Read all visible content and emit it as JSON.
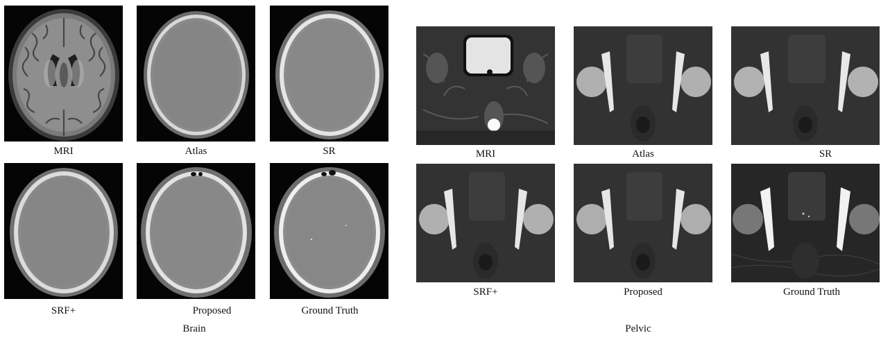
{
  "figure": {
    "brain": {
      "group_label": "Brain",
      "panels": [
        {
          "label": "MRI",
          "kind": "mri"
        },
        {
          "label": "Atlas",
          "kind": "atlas"
        },
        {
          "label": "SR",
          "kind": "sr"
        },
        {
          "label": "SRF+",
          "kind": "srf"
        },
        {
          "label": "Proposed",
          "kind": "proposed"
        },
        {
          "label": "Ground Truth",
          "kind": "gt"
        }
      ]
    },
    "pelvic": {
      "group_label": "Pelvic",
      "panels": [
        {
          "label": "MRI",
          "kind": "mri"
        },
        {
          "label": "Atlas",
          "kind": "atlas"
        },
        {
          "label": "SR",
          "kind": "sr"
        },
        {
          "label": "SRF+",
          "kind": "srf"
        },
        {
          "label": "Proposed",
          "kind": "proposed"
        },
        {
          "label": "Ground Truth",
          "kind": "gt"
        }
      ]
    }
  }
}
